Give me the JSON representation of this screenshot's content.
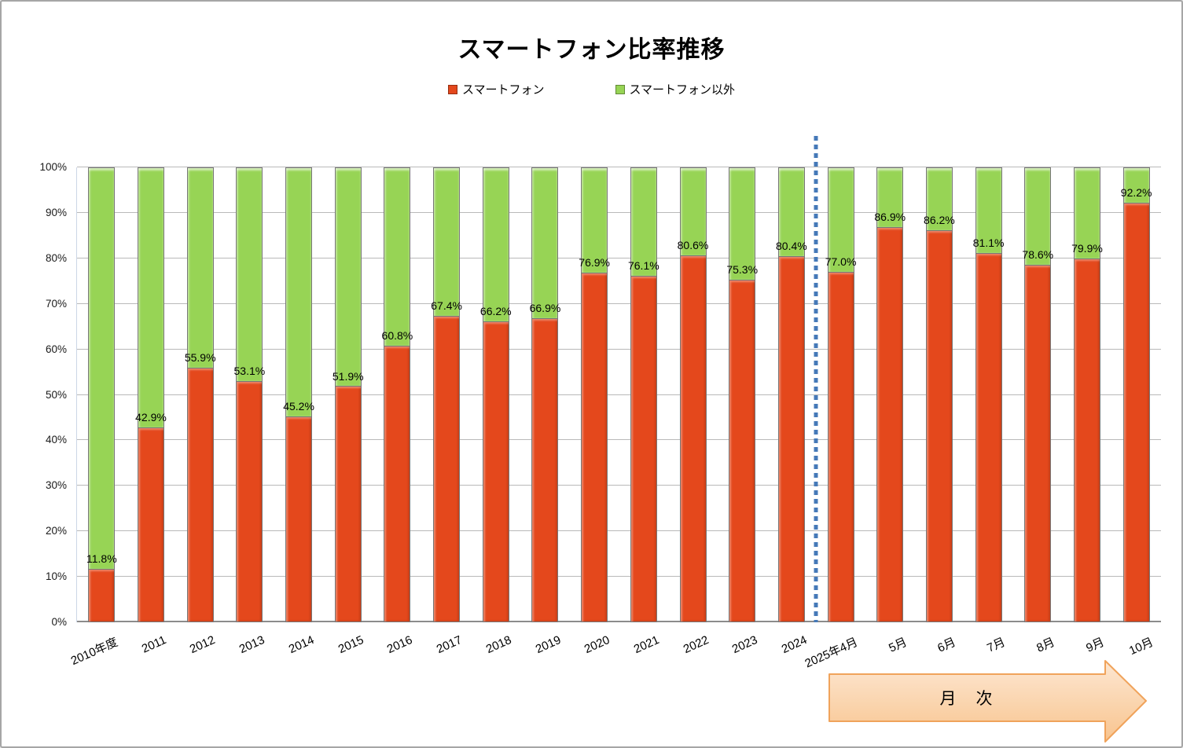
{
  "header": {
    "title": "スマートフォン比率推移"
  },
  "legend": {
    "items": [
      {
        "label": "スマートフォン",
        "color": "#E4481C"
      },
      {
        "label": "スマートフォン以外",
        "color": "#97D455"
      }
    ]
  },
  "chart_data": {
    "type": "bar",
    "stacked": true,
    "title": "スマートフォン比率推移",
    "categories": [
      "2010年度",
      "2011",
      "2012",
      "2013",
      "2014",
      "2015",
      "2016",
      "2017",
      "2018",
      "2019",
      "2020",
      "2021",
      "2022",
      "2023",
      "2024",
      "2025年4月",
      "5月",
      "6月",
      "7月",
      "8月",
      "9月",
      "10月"
    ],
    "series": [
      {
        "name": "スマートフォン",
        "color": "#E4481C",
        "values": [
          11.8,
          42.9,
          55.9,
          53.1,
          45.2,
          51.9,
          60.8,
          67.4,
          66.2,
          66.9,
          76.9,
          76.1,
          80.6,
          75.3,
          80.4,
          77.0,
          86.9,
          86.2,
          81.1,
          78.6,
          79.9,
          92.2
        ]
      },
      {
        "name": "スマートフォン以外",
        "color": "#97D455",
        "values": [
          88.2,
          57.1,
          44.1,
          46.9,
          54.8,
          48.1,
          39.2,
          32.6,
          33.8,
          33.1,
          23.1,
          23.9,
          19.4,
          24.7,
          19.6,
          23.0,
          13.1,
          13.8,
          18.9,
          21.4,
          20.1,
          7.8
        ]
      }
    ],
    "data_labels": [
      "11.8%",
      "42.9%",
      "55.9%",
      "53.1%",
      "45.2%",
      "51.9%",
      "60.8%",
      "67.4%",
      "66.2%",
      "66.9%",
      "76.9%",
      "76.1%",
      "80.6%",
      "75.3%",
      "80.4%",
      "77.0%",
      "86.9%",
      "86.2%",
      "81.1%",
      "78.6%",
      "79.9%",
      "92.2%"
    ],
    "y_ticks": [
      "0%",
      "10%",
      "20%",
      "30%",
      "40%",
      "50%",
      "60%",
      "70%",
      "80%",
      "90%",
      "100%"
    ],
    "ylim": [
      0,
      100
    ],
    "grid": true,
    "legend_position": "top",
    "divider": {
      "after_category": "2024",
      "color": "#4579B8",
      "style": "dotted"
    }
  },
  "annotation": {
    "arrow_label": "月　次",
    "fill_top": "#FDE7D2",
    "fill_bottom": "#F8C48E",
    "border": "#F0A35B"
  }
}
